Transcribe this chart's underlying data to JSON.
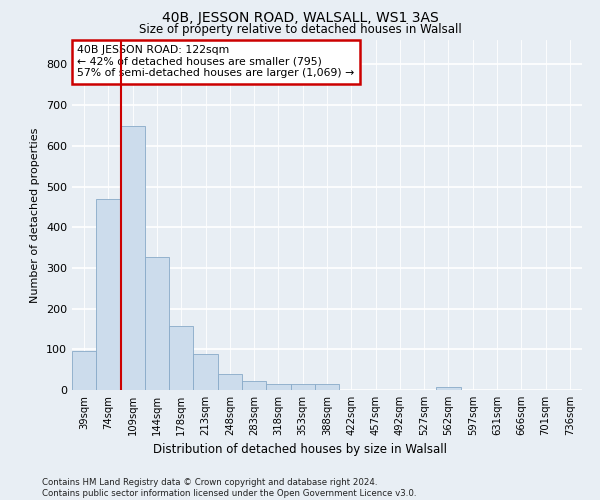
{
  "title": "40B, JESSON ROAD, WALSALL, WS1 3AS",
  "subtitle": "Size of property relative to detached houses in Walsall",
  "xlabel": "Distribution of detached houses by size in Walsall",
  "ylabel": "Number of detached properties",
  "bar_color": "#ccdcec",
  "bar_edge_color": "#88aac8",
  "highlight_line_color": "#cc0000",
  "annotation_text": "40B JESSON ROAD: 122sqm\n← 42% of detached houses are smaller (795)\n57% of semi-detached houses are larger (1,069) →",
  "annotation_box_color": "#ffffff",
  "annotation_border_color": "#cc0000",
  "categories": [
    "39sqm",
    "74sqm",
    "109sqm",
    "144sqm",
    "178sqm",
    "213sqm",
    "248sqm",
    "283sqm",
    "318sqm",
    "353sqm",
    "388sqm",
    "422sqm",
    "457sqm",
    "492sqm",
    "527sqm",
    "562sqm",
    "597sqm",
    "631sqm",
    "666sqm",
    "701sqm",
    "736sqm"
  ],
  "values": [
    95,
    470,
    648,
    327,
    157,
    88,
    40,
    22,
    15,
    15,
    14,
    0,
    0,
    0,
    0,
    8,
    0,
    0,
    0,
    0,
    0
  ],
  "ylim": [
    0,
    860
  ],
  "yticks": [
    0,
    100,
    200,
    300,
    400,
    500,
    600,
    700,
    800
  ],
  "footer_text": "Contains HM Land Registry data © Crown copyright and database right 2024.\nContains public sector information licensed under the Open Government Licence v3.0.",
  "bg_color": "#e8eef4",
  "plot_bg_color": "#e8eef4",
  "grid_color": "#ffffff"
}
